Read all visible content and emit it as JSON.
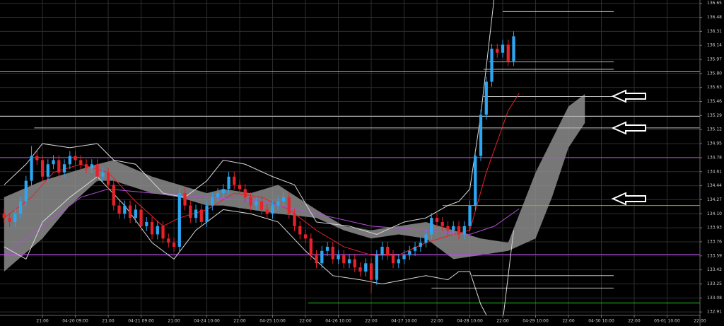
{
  "chart_data": {
    "type": "candlestick",
    "xlim": [
      -15.5,
      240
    ],
    "ylim": [
      132.74,
      136.69
    ],
    "grid": true,
    "xticks": [
      {
        "value": 0,
        "label": "21:00"
      },
      {
        "value": 12,
        "label": "04-20 09:00"
      },
      {
        "value": 24,
        "label": "21:00"
      },
      {
        "value": 36,
        "label": "04-21 09:00"
      },
      {
        "value": 48,
        "label": "21:00"
      },
      {
        "value": 60,
        "label": "04-24 10:00"
      },
      {
        "value": 72,
        "label": "22:00"
      },
      {
        "value": 84,
        "label": "04-25 10:00"
      },
      {
        "value": 96,
        "label": "22:00"
      },
      {
        "value": 108,
        "label": "04-26 10:00"
      },
      {
        "value": 120,
        "label": "22:00"
      },
      {
        "value": 132,
        "label": "04-27 10:00"
      },
      {
        "value": 144,
        "label": "22:00"
      },
      {
        "value": 156,
        "label": "04-28 10:00"
      },
      {
        "value": 168,
        "label": "22:00"
      },
      {
        "value": 180,
        "label": "04-29 10:00"
      },
      {
        "value": 192,
        "label": "22:00"
      },
      {
        "value": 204,
        "label": "04-30 10:00"
      },
      {
        "value": 216,
        "label": "22:00"
      },
      {
        "value": 228,
        "label": "05-01 10:00"
      },
      {
        "value": 240,
        "label": "22:00"
      }
    ],
    "yticks": [
      132.91,
      133.08,
      133.25,
      133.42,
      133.59,
      133.76,
      133.93,
      {
        "value": 134.1,
        "label": "134.10"
      },
      134.27,
      134.44,
      134.61,
      134.78,
      134.95,
      135.12,
      135.29,
      135.46,
      135.63,
      {
        "value": 135.8,
        "label": "135.80"
      },
      135.97,
      136.14,
      136.31,
      136.48,
      136.65
    ],
    "up_color": "#2ea7f2",
    "down_color": "#e8222a",
    "x": [
      -14,
      -12,
      -10,
      -8,
      -6,
      -4,
      -2,
      0,
      2,
      4,
      6,
      8,
      10,
      12,
      14,
      16,
      18,
      20,
      22,
      24,
      26,
      28,
      30,
      32,
      34,
      36,
      38,
      40,
      42,
      44,
      46,
      48,
      50,
      52,
      54,
      56,
      58,
      60,
      62,
      64,
      66,
      68,
      70,
      72,
      74,
      76,
      78,
      80,
      82,
      84,
      86,
      88,
      90,
      92,
      94,
      96,
      98,
      100,
      102,
      104,
      106,
      108,
      110,
      112,
      114,
      116,
      118,
      120,
      122,
      124,
      126,
      128,
      130,
      132,
      134,
      136,
      138,
      140,
      142,
      144,
      146,
      148,
      150,
      152,
      154,
      156,
      158,
      160,
      162,
      164,
      166,
      168,
      170,
      172
    ],
    "open": [
      134.1,
      134.05,
      134.0,
      134.1,
      134.25,
      134.5,
      134.8,
      134.75,
      134.55,
      134.7,
      134.75,
      134.6,
      134.7,
      134.8,
      134.75,
      134.7,
      134.65,
      134.7,
      134.55,
      134.6,
      134.45,
      134.2,
      134.1,
      134.2,
      134.05,
      134.15,
      133.95,
      134.0,
      133.85,
      133.95,
      133.8,
      133.75,
      133.7,
      134.35,
      134.2,
      134.05,
      134.15,
      134.0,
      134.2,
      134.3,
      134.35,
      134.4,
      134.55,
      134.45,
      134.4,
      134.3,
      134.2,
      134.25,
      134.15,
      134.1,
      134.2,
      134.25,
      134.3,
      134.1,
      133.95,
      133.85,
      133.8,
      133.6,
      133.5,
      133.65,
      133.7,
      133.55,
      133.6,
      133.5,
      133.55,
      133.45,
      133.4,
      133.5,
      133.3,
      133.6,
      133.7,
      133.6,
      133.5,
      133.55,
      133.6,
      133.65,
      133.7,
      133.75,
      133.85,
      134.05,
      134.0,
      133.95,
      133.9,
      133.95,
      133.85,
      133.95,
      134.2,
      134.8,
      135.3,
      135.7,
      136.1,
      136.05,
      136.15,
      135.95
    ],
    "high": [
      134.16,
      134.11,
      134.16,
      134.31,
      134.56,
      134.92,
      134.86,
      134.81,
      134.76,
      134.81,
      134.81,
      134.76,
      134.86,
      134.86,
      134.81,
      134.76,
      134.76,
      134.76,
      134.66,
      134.66,
      134.51,
      134.26,
      134.26,
      134.26,
      134.21,
      134.21,
      134.06,
      134.06,
      134.01,
      134.01,
      133.86,
      133.81,
      134.41,
      134.41,
      134.26,
      134.21,
      134.21,
      134.26,
      134.36,
      134.41,
      134.46,
      134.61,
      134.61,
      134.51,
      134.46,
      134.36,
      134.31,
      134.31,
      134.21,
      134.26,
      134.31,
      134.36,
      134.36,
      134.16,
      134.01,
      133.91,
      133.86,
      133.66,
      133.71,
      133.76,
      133.76,
      133.66,
      133.66,
      133.61,
      133.61,
      133.51,
      133.56,
      133.56,
      133.66,
      133.76,
      133.76,
      133.66,
      133.61,
      133.66,
      133.71,
      133.76,
      133.81,
      133.91,
      134.11,
      134.11,
      134.06,
      134.01,
      134.01,
      134.01,
      134.01,
      134.26,
      134.86,
      135.36,
      135.76,
      136.16,
      136.16,
      136.21,
      136.21,
      136.31
    ],
    "low": [
      133.99,
      133.94,
      133.94,
      134.04,
      134.19,
      134.44,
      134.69,
      134.49,
      134.49,
      134.64,
      134.54,
      134.54,
      134.64,
      134.69,
      134.64,
      134.59,
      134.59,
      134.49,
      134.49,
      134.39,
      134.14,
      134.04,
      134.04,
      133.99,
      133.99,
      133.89,
      133.89,
      133.79,
      133.79,
      133.74,
      133.69,
      133.64,
      133.64,
      134.14,
      133.99,
      133.99,
      133.94,
      133.94,
      134.14,
      134.24,
      134.29,
      134.34,
      134.39,
      134.34,
      134.24,
      134.14,
      134.14,
      134.09,
      134.04,
      134.04,
      134.14,
      134.19,
      134.04,
      133.89,
      133.79,
      133.74,
      133.54,
      133.44,
      133.44,
      133.59,
      133.49,
      133.49,
      133.44,
      133.44,
      133.39,
      133.34,
      133.34,
      133.14,
      133.24,
      133.54,
      133.54,
      133.44,
      133.44,
      133.49,
      133.54,
      133.59,
      133.64,
      133.69,
      133.79,
      133.94,
      133.89,
      133.84,
      133.84,
      133.79,
      133.79,
      133.89,
      134.14,
      134.74,
      135.24,
      135.64,
      135.99,
      135.99,
      135.89,
      135.89
    ],
    "close": [
      134.05,
      134.0,
      134.1,
      134.25,
      134.5,
      134.8,
      134.75,
      134.55,
      134.7,
      134.75,
      134.6,
      134.7,
      134.8,
      134.75,
      134.7,
      134.65,
      134.7,
      134.55,
      134.6,
      134.45,
      134.2,
      134.1,
      134.2,
      134.05,
      134.15,
      133.95,
      134.0,
      133.85,
      133.95,
      133.8,
      133.75,
      133.7,
      134.35,
      134.2,
      134.05,
      134.15,
      134.0,
      134.2,
      134.3,
      134.35,
      134.4,
      134.55,
      134.45,
      134.4,
      134.3,
      134.2,
      134.25,
      134.15,
      134.1,
      134.2,
      134.25,
      134.3,
      134.1,
      133.95,
      133.85,
      133.8,
      133.6,
      133.5,
      133.65,
      133.7,
      133.55,
      133.6,
      133.5,
      133.55,
      133.45,
      133.4,
      133.5,
      133.3,
      133.6,
      133.7,
      133.6,
      133.5,
      133.55,
      133.6,
      133.65,
      133.7,
      133.75,
      133.85,
      134.05,
      134.0,
      133.95,
      133.9,
      133.95,
      133.85,
      133.95,
      134.2,
      134.8,
      135.3,
      135.7,
      136.1,
      136.05,
      136.15,
      135.95,
      136.25
    ],
    "cloud": {
      "color": "#8c8c8c",
      "x": [
        -14,
        0,
        10,
        20,
        26,
        40,
        50,
        60,
        66,
        76,
        86,
        100,
        110,
        120,
        130,
        140,
        150,
        160,
        170,
        180,
        186,
        192,
        198
      ],
      "upper": [
        134.3,
        134.5,
        134.6,
        134.7,
        134.75,
        134.55,
        134.45,
        134.35,
        134.4,
        134.35,
        134.45,
        134.15,
        133.95,
        133.9,
        133.95,
        134.0,
        133.9,
        133.8,
        133.75,
        134.6,
        135.0,
        135.4,
        135.55
      ],
      "lower": [
        133.4,
        133.8,
        134.2,
        134.5,
        134.5,
        134.35,
        134.3,
        134.2,
        134.2,
        134.15,
        134.1,
        134.05,
        133.9,
        133.8,
        133.85,
        133.8,
        133.55,
        133.6,
        133.65,
        133.8,
        134.3,
        134.9,
        135.2
      ]
    },
    "lines": [
      {
        "color": "#e8222a",
        "x": [
          -14,
          -4,
          4,
          14,
          24,
          34,
          44,
          50,
          60,
          70,
          80,
          90,
          100,
          110,
          120,
          130,
          140,
          150,
          156,
          162,
          170,
          174
        ],
        "values": [
          134.05,
          134.3,
          134.6,
          134.7,
          134.6,
          134.25,
          133.95,
          134.05,
          134.15,
          134.35,
          134.3,
          134.15,
          133.9,
          133.7,
          133.6,
          133.6,
          133.75,
          133.85,
          133.9,
          134.6,
          135.35,
          135.56
        ]
      },
      {
        "color": "#b050d8",
        "x": [
          -14,
          0,
          14,
          24,
          40,
          60,
          80,
          100,
          120,
          140,
          156,
          165,
          174
        ],
        "values": [
          133.6,
          133.95,
          134.3,
          134.4,
          134.35,
          134.3,
          134.25,
          134.1,
          133.95,
          133.9,
          133.85,
          133.95,
          134.16
        ]
      },
      {
        "color": "#d8d8d8",
        "x": [
          -14,
          -6,
          0,
          10,
          20,
          26,
          34,
          44,
          52,
          60,
          66,
          74,
          84,
          92,
          100,
          112,
          122,
          132,
          140,
          148,
          152,
          156,
          160,
          165
        ],
        "values": [
          134.45,
          134.7,
          134.95,
          134.9,
          134.95,
          134.75,
          134.7,
          134.35,
          134.3,
          134.5,
          134.75,
          134.7,
          134.55,
          134.45,
          134.0,
          133.95,
          133.85,
          134.0,
          134.05,
          134.2,
          134.25,
          134.4,
          135.3,
          136.75
        ]
      },
      {
        "color": "#d8d8d8",
        "x": [
          -14,
          -6,
          0,
          10,
          20,
          30,
          40,
          48,
          56,
          66,
          76,
          86,
          96,
          106,
          116,
          124,
          132,
          140,
          148,
          152,
          156,
          160,
          164,
          168,
          172
        ],
        "values": [
          133.7,
          133.55,
          134.0,
          134.3,
          134.55,
          134.2,
          133.75,
          133.55,
          133.9,
          134.15,
          134.1,
          134.0,
          133.65,
          133.35,
          133.3,
          133.25,
          133.3,
          133.35,
          133.3,
          133.4,
          133.4,
          133.0,
          132.75,
          132.8,
          133.9
        ]
      }
    ],
    "levels": [
      {
        "value": 135.82,
        "color": "#d9a520"
      },
      {
        "value": 135.28,
        "color": "#bdbdbd"
      },
      {
        "value": 134.78,
        "color": "#b050d8"
      },
      {
        "value": 133.61,
        "color": "#b050d8"
      },
      {
        "value": 135.14,
        "color": "#bdbdbd",
        "x": [
          -3,
          240
        ]
      },
      {
        "value": 134.2,
        "color": "#a89a3c",
        "x": [
          146,
          240
        ]
      },
      {
        "value": 133.02,
        "color": "#22cc22",
        "x": [
          97,
          240
        ]
      },
      {
        "value": 136.55,
        "color": "#bdbdbd",
        "x": [
          168,
          208.5
        ]
      },
      {
        "value": 135.94,
        "color": "#bdbdbd",
        "x": [
          163,
          208.5
        ]
      },
      {
        "value": 135.85,
        "color": "#bdbdbd",
        "x": [
          161,
          208.5
        ]
      },
      {
        "value": 135.52,
        "color": "#bdbdbd",
        "x": [
          161,
          208.5
        ]
      },
      {
        "value": 133.35,
        "color": "#bdbdbd",
        "x": [
          157,
          208.5
        ]
      },
      {
        "value": 133.2,
        "color": "#bdbdbd",
        "x": [
          142,
          208.5
        ]
      }
    ]
  }
}
